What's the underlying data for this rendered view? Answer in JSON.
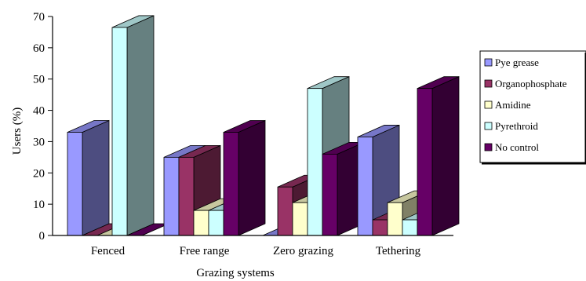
{
  "chart_data": {
    "type": "bar",
    "style": "3d-clustered-columns",
    "title": "",
    "xlabel": "Grazing systems",
    "ylabel": "Users (%)",
    "ylim": [
      0,
      70
    ],
    "yticks": [
      "0",
      "10",
      "20",
      "30",
      "40",
      "50",
      "60",
      "70"
    ],
    "grid": false,
    "legend_position": "right",
    "categories": [
      "Fenced",
      "Free range",
      "Zero grazing",
      "Tethering"
    ],
    "series": [
      {
        "name": "Pye grease",
        "color": "#9999ff",
        "values": [
          33,
          25,
          0,
          31.5
        ]
      },
      {
        "name": "Organophosphate",
        "color": "#993366",
        "values": [
          0,
          25,
          15.5,
          5
        ]
      },
      {
        "name": "Amidine",
        "color": "#ffffcc",
        "values": [
          0,
          8,
          10.5,
          10.5
        ]
      },
      {
        "name": "Pyrethroid",
        "color": "#ccffff",
        "values": [
          66.5,
          8,
          47,
          5
        ]
      },
      {
        "name": "No control",
        "color": "#660066",
        "values": [
          0,
          33,
          26,
          47
        ]
      }
    ]
  }
}
